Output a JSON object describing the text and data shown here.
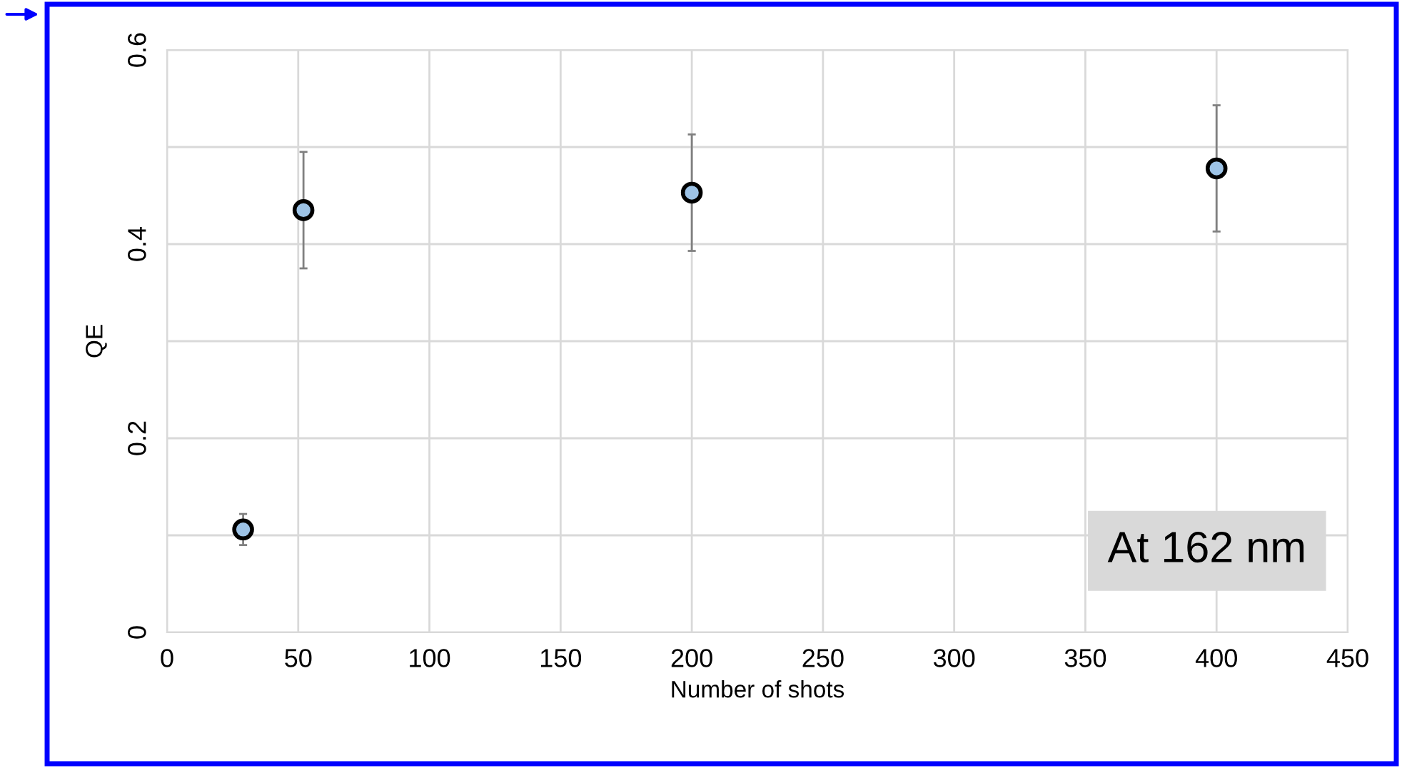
{
  "chart_data": {
    "type": "scatter",
    "xlabel": "Number of shots",
    "ylabel": "QE",
    "x": [
      29,
      52,
      200,
      400
    ],
    "values": [
      0.106,
      0.435,
      0.453,
      0.478
    ],
    "errors": [
      0.016,
      0.06,
      0.06,
      0.065
    ],
    "color": "#9dc3e6",
    "marker": "circle",
    "xlim": [
      0,
      450
    ],
    "xticks": [
      0,
      50,
      100,
      150,
      200,
      250,
      300,
      350,
      400,
      450
    ],
    "ylim": [
      0,
      0.6
    ],
    "yticks": [
      {
        "value": 0,
        "label": "0"
      },
      {
        "value": 0.1,
        "label": null
      },
      {
        "value": 0.2,
        "label": "0.2"
      },
      {
        "value": 0.3,
        "label": null
      },
      {
        "value": 0.4,
        "label": "0.4"
      },
      {
        "value": 0.5,
        "label": null
      },
      {
        "value": 0.6,
        "label": "0.6"
      }
    ],
    "grid": true,
    "annotations": [
      "At 162 nm"
    ]
  }
}
